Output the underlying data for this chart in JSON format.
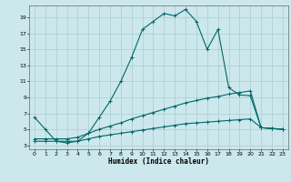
{
  "xlabel": "Humidex (Indice chaleur)",
  "bg_color": "#cce8ec",
  "grid_color": "#aacccc",
  "line_color": "#006868",
  "xlim": [
    -0.5,
    23.5
  ],
  "ylim": [
    2.5,
    20.5
  ],
  "xticks": [
    0,
    1,
    2,
    3,
    4,
    5,
    6,
    7,
    8,
    9,
    10,
    11,
    12,
    13,
    14,
    15,
    16,
    17,
    18,
    19,
    20,
    21,
    22,
    23
  ],
  "yticks": [
    3,
    5,
    7,
    9,
    11,
    13,
    15,
    17,
    19
  ],
  "line1_x": [
    0,
    1,
    2,
    3,
    4,
    5,
    6,
    7,
    8,
    9,
    10,
    11,
    12,
    13,
    14,
    15,
    16,
    17,
    18,
    19,
    20,
    21,
    22,
    23
  ],
  "line1_y": [
    6.5,
    5.0,
    3.5,
    3.3,
    3.5,
    4.5,
    6.5,
    8.5,
    11.0,
    14.0,
    17.5,
    18.5,
    19.5,
    19.2,
    20.0,
    18.5,
    15.0,
    17.5,
    10.2,
    9.3,
    9.2,
    5.2,
    5.1,
    5.0
  ],
  "line2_x": [
    0,
    1,
    2,
    3,
    4,
    5,
    6,
    7,
    8,
    9,
    10,
    11,
    12,
    13,
    14,
    15,
    16,
    17,
    18,
    19,
    20,
    21,
    22,
    23
  ],
  "line2_y": [
    3.8,
    3.8,
    3.8,
    3.8,
    4.0,
    4.5,
    5.0,
    5.4,
    5.8,
    6.3,
    6.7,
    7.1,
    7.5,
    7.9,
    8.3,
    8.6,
    8.9,
    9.1,
    9.4,
    9.6,
    9.8,
    5.2,
    5.1,
    5.0
  ],
  "line3_x": [
    0,
    1,
    2,
    3,
    4,
    5,
    6,
    7,
    8,
    9,
    10,
    11,
    12,
    13,
    14,
    15,
    16,
    17,
    18,
    19,
    20,
    21,
    22,
    23
  ],
  "line3_y": [
    3.5,
    3.5,
    3.5,
    3.5,
    3.5,
    3.8,
    4.1,
    4.3,
    4.5,
    4.7,
    4.9,
    5.1,
    5.3,
    5.5,
    5.7,
    5.8,
    5.9,
    6.0,
    6.1,
    6.2,
    6.3,
    5.2,
    5.1,
    5.0
  ]
}
